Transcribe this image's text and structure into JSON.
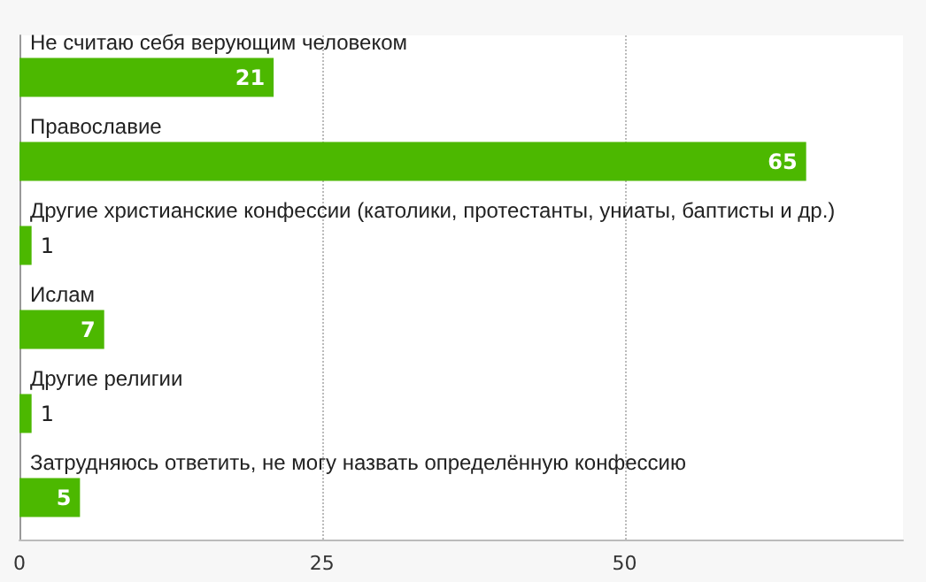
{
  "chart_data": {
    "type": "bar",
    "orientation": "horizontal",
    "categories": [
      "Не считаю себя верующим человеком",
      "Православие",
      "Другие христианские конфессии (католики, протестанты, униаты, баптисты и др.)",
      "Ислам",
      "Другие религии",
      "Затрудняюсь ответить, не могу назвать определённую конфессию"
    ],
    "values": [
      21,
      65,
      1,
      7,
      1,
      5
    ],
    "color": "#4cb800",
    "xlim": [
      0,
      73
    ],
    "xticks": [
      0,
      25,
      50
    ],
    "grid": "x",
    "data_labels": true
  }
}
